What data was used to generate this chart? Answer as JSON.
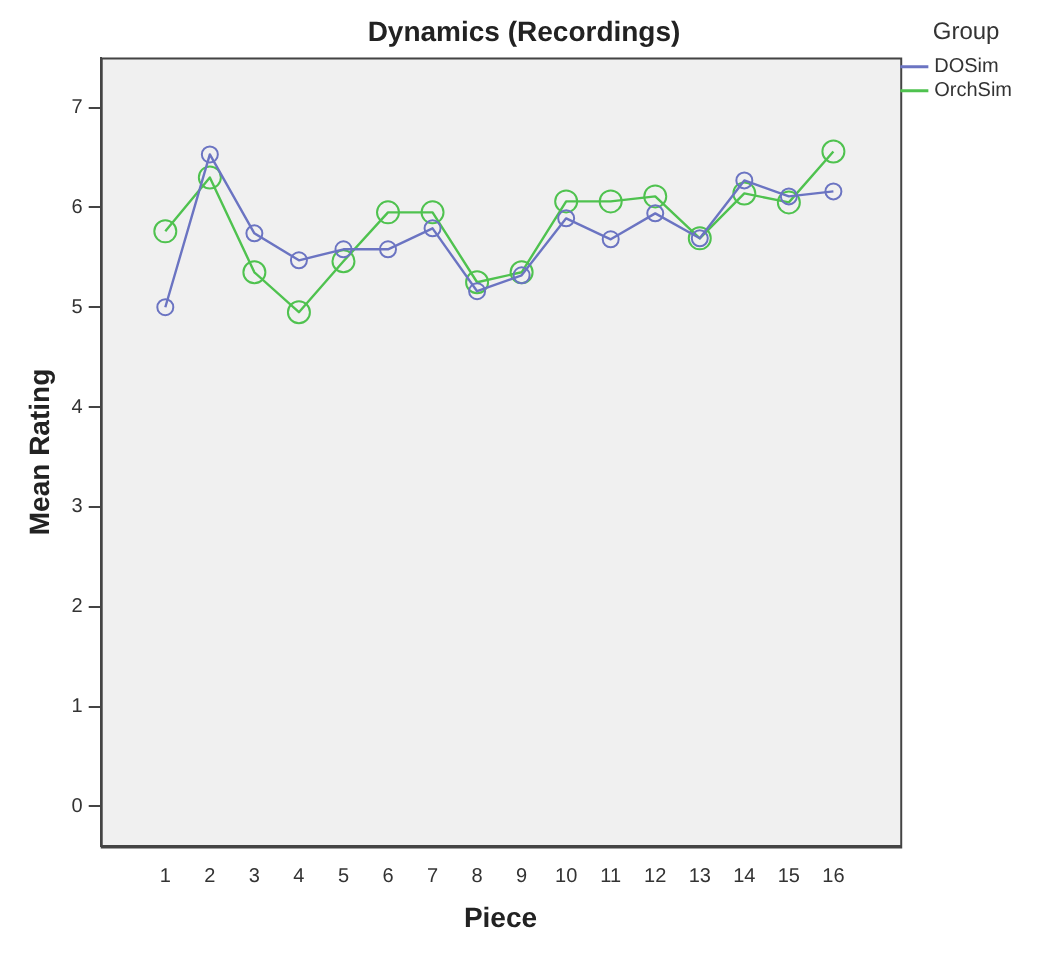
{
  "chart_data": {
    "type": "line",
    "title": "Dynamics (Recordings)",
    "xlabel": "Piece",
    "ylabel": "Mean Rating",
    "legend_title": "Group",
    "x": [
      1,
      2,
      3,
      4,
      5,
      6,
      7,
      8,
      9,
      10,
      11,
      12,
      13,
      14,
      15,
      16
    ],
    "series": [
      {
        "name": "DOSim",
        "color": "#6b74c2",
        "values": [
          5.0,
          6.53,
          5.74,
          5.47,
          5.58,
          5.58,
          5.79,
          5.16,
          5.32,
          5.89,
          5.68,
          5.94,
          5.69,
          6.27,
          6.11,
          6.16
        ]
      },
      {
        "name": "OrchSim",
        "color": "#4fc24f",
        "values": [
          5.76,
          6.3,
          5.35,
          4.95,
          5.46,
          5.95,
          5.95,
          5.25,
          5.35,
          6.06,
          6.06,
          6.11,
          5.69,
          6.14,
          6.05,
          6.56
        ]
      }
    ],
    "xlim": [
      -0.45,
      17.5
    ],
    "xticks": [
      1,
      2,
      3,
      4,
      5,
      6,
      7,
      8,
      9,
      10,
      11,
      12,
      13,
      14,
      15,
      16
    ],
    "ylim": [
      -0.4,
      7.5
    ],
    "yticks": [
      0,
      1,
      2,
      3,
      4,
      5,
      6,
      7
    ],
    "grid": false,
    "legend": "top right",
    "marker": "circle",
    "line_style": "solid"
  }
}
